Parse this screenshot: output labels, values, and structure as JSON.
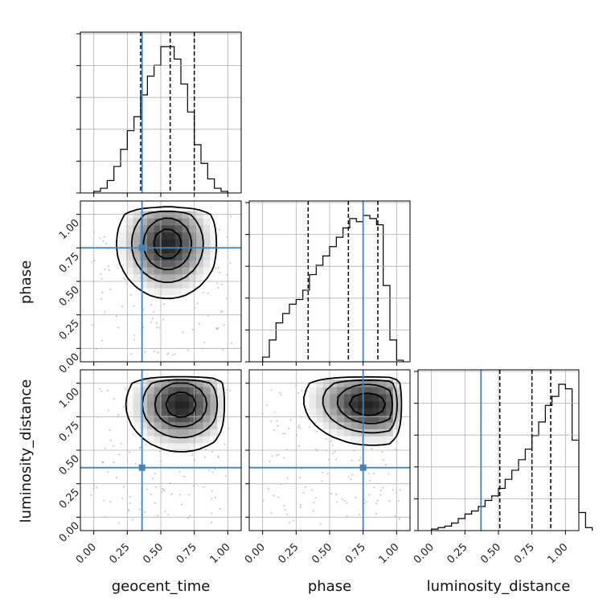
{
  "chart_data": {
    "type": "corner",
    "parameters": [
      "geocent_time",
      "phase",
      "luminosity_distance"
    ],
    "axis_labels": {
      "geocent_time": "geocent_time",
      "phase": "phase",
      "luminosity_distance": "luminosity_distance"
    },
    "tick_labels": [
      "0.00",
      "0.25",
      "0.50",
      "0.75",
      "1.00"
    ],
    "range": [
      -0.1,
      1.1
    ],
    "grid": true,
    "truth_color": "#4682b4",
    "truths": {
      "geocent_time": 0.36,
      "phase": 0.75,
      "luminosity_distance": 0.37
    },
    "quantiles": {
      "geocent_time": [
        0.35,
        0.57,
        0.75
      ],
      "phase": [
        0.34,
        0.64,
        0.86
      ],
      "luminosity_distance": [
        0.51,
        0.75,
        0.89
      ]
    },
    "histograms": {
      "bin_width": 0.05,
      "geocent_time": {
        "bin_start": 0.0,
        "counts": [
          1,
          3,
          8,
          17,
          28,
          40,
          49,
          63,
          75,
          82,
          94,
          94,
          86,
          70,
          52,
          31,
          19,
          9,
          3,
          1
        ]
      },
      "phase": {
        "bin_start": 0.0,
        "counts": [
          3,
          14,
          25,
          31,
          37,
          40,
          46,
          56,
          62,
          68,
          74,
          80,
          86,
          92,
          90,
          94,
          92,
          88,
          49,
          14,
          1
        ]
      },
      "luminosity_distance": {
        "bin_start": 0.0,
        "counts": [
          1,
          2,
          3,
          5,
          8,
          11,
          13,
          16,
          20,
          23,
          28,
          34,
          40,
          47,
          54,
          63,
          72,
          83,
          89,
          97,
          94,
          60,
          12,
          2
        ]
      }
    },
    "pair_peaks": {
      "phase_vs_geocent_time": {
        "x": 0.55,
        "y": 0.78
      },
      "luminosity_distance_vs_geocent_time": {
        "x": 0.65,
        "y": 0.84
      },
      "luminosity_distance_vs_phase": {
        "x": 0.78,
        "y": 0.84
      }
    }
  }
}
